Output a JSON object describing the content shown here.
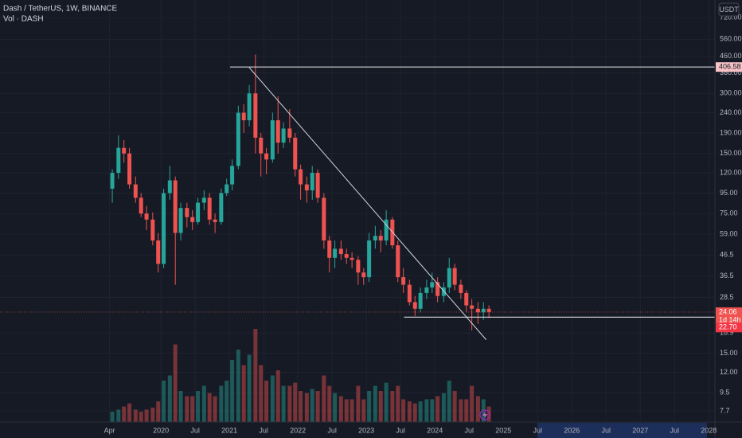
{
  "chart_data": {
    "type": "candlestick",
    "title": "Dash / TetherUS, 1W, BINANCE",
    "subtitle": "Vol · DASH",
    "currency": "USDT",
    "log_scale": true,
    "grid": true,
    "up_color": "#26a69a",
    "down_color": "#ef5350",
    "xlim": [
      2017.65,
      2028.09
    ],
    "xticks": [
      {
        "value": 2019.25,
        "label": "Apr"
      },
      2020,
      {
        "value": 2020.5,
        "label": "Jul"
      },
      2021,
      {
        "value": 2021.5,
        "label": "Jul"
      },
      2022,
      {
        "value": 2022.5,
        "label": "Jul"
      },
      2023,
      {
        "value": 2023.5,
        "label": "Jul"
      },
      2024,
      {
        "value": 2024.5,
        "label": "Jul"
      },
      2025,
      {
        "value": 2025.5,
        "label": "Jul"
      },
      2026,
      {
        "value": 2026.5,
        "label": "Jul"
      },
      2027,
      {
        "value": 2027.5,
        "label": "Jul"
      },
      2028
    ],
    "ylim": [
      6.77,
      881
    ],
    "yticks": [
      {
        "value": 720,
        "label": "720.00"
      },
      {
        "value": 560,
        "label": "560.00"
      },
      {
        "value": 460,
        "label": "460.00"
      },
      {
        "value": 380,
        "label": "380.00"
      },
      {
        "value": 300,
        "label": "300.00"
      },
      {
        "value": 240,
        "label": "240.00"
      },
      {
        "value": 190,
        "label": "190.00"
      },
      {
        "value": 150,
        "label": "150.00"
      },
      {
        "value": 120,
        "label": "120.00"
      },
      {
        "value": 95,
        "label": "95.00"
      },
      {
        "value": 75,
        "label": "75.00"
      },
      {
        "value": 59,
        "label": "59.00"
      },
      46.5,
      36.5,
      28.5,
      18.9,
      {
        "value": 15,
        "label": "15.00"
      },
      {
        "value": 12,
        "label": "12.00"
      },
      9.5,
      7.7
    ],
    "vlim": [
      0,
      100
    ],
    "x": [
      2019.29,
      2019.38,
      2019.46,
      2019.54,
      2019.63,
      2019.71,
      2019.79,
      2019.88,
      2019.96,
      2020.04,
      2020.13,
      2020.21,
      2020.29,
      2020.38,
      2020.46,
      2020.54,
      2020.63,
      2020.71,
      2020.79,
      2020.88,
      2020.96,
      2021.04,
      2021.13,
      2021.21,
      2021.29,
      2021.38,
      2021.46,
      2021.54,
      2021.63,
      2021.71,
      2021.79,
      2021.88,
      2021.96,
      2022.04,
      2022.13,
      2022.21,
      2022.29,
      2022.38,
      2022.46,
      2022.54,
      2022.63,
      2022.71,
      2022.79,
      2022.88,
      2022.96,
      2023.04,
      2023.13,
      2023.21,
      2023.29,
      2023.38,
      2023.46,
      2023.54,
      2023.63,
      2023.71,
      2023.79,
      2023.88,
      2023.96,
      2024.04,
      2024.13,
      2024.21,
      2024.29,
      2024.38,
      2024.46,
      2024.54,
      2024.63,
      2024.71,
      2024.79
    ],
    "open": [
      100,
      120,
      160,
      150,
      105,
      90,
      75,
      70,
      55,
      42,
      95,
      110,
      60,
      80,
      72,
      68,
      85,
      90,
      70,
      68,
      95,
      105,
      130,
      240,
      220,
      300,
      180,
      150,
      140,
      220,
      170,
      200,
      180,
      125,
      105,
      98,
      120,
      90,
      55,
      45,
      50,
      47,
      45,
      44,
      38,
      36,
      55,
      58,
      55,
      70,
      52,
      36,
      33,
      27,
      25,
      30,
      32,
      34,
      29,
      32,
      40,
      33,
      30,
      26,
      25,
      24,
      25
    ],
    "high": [
      125,
      185,
      175,
      160,
      115,
      95,
      82,
      76,
      60,
      100,
      130,
      115,
      85,
      85,
      78,
      90,
      98,
      95,
      75,
      100,
      112,
      140,
      260,
      265,
      330,
      470,
      190,
      160,
      240,
      290,
      215,
      250,
      190,
      132,
      115,
      130,
      125,
      95,
      58,
      55,
      55,
      50,
      48,
      46,
      40,
      60,
      65,
      62,
      78,
      72,
      55,
      40,
      35,
      29,
      32,
      35,
      38,
      36,
      34,
      45,
      42,
      35,
      31,
      28,
      27,
      27,
      26
    ],
    "low": [
      85,
      112,
      135,
      100,
      85,
      72,
      62,
      52,
      38,
      40,
      88,
      33,
      55,
      64,
      62,
      66,
      78,
      66,
      60,
      66,
      92,
      98,
      125,
      190,
      205,
      150,
      115,
      118,
      135,
      150,
      160,
      170,
      115,
      88,
      85,
      88,
      85,
      50,
      38,
      40,
      44,
      42,
      40,
      33,
      33,
      34,
      50,
      48,
      52,
      50,
      34,
      30,
      26,
      23,
      24,
      28,
      30,
      27,
      27,
      30,
      31,
      28,
      24,
      19.5,
      21,
      22,
      22.5
    ],
    "close": [
      120,
      160,
      150,
      105,
      90,
      75,
      70,
      55,
      42,
      95,
      110,
      60,
      80,
      72,
      68,
      85,
      90,
      70,
      68,
      95,
      105,
      130,
      240,
      220,
      300,
      180,
      150,
      140,
      220,
      170,
      200,
      180,
      125,
      105,
      98,
      120,
      90,
      55,
      45,
      50,
      47,
      45,
      44,
      38,
      36,
      55,
      58,
      55,
      70,
      52,
      36,
      33,
      27,
      25,
      30,
      32,
      34,
      29,
      32,
      40,
      33,
      30,
      26,
      25,
      24,
      25,
      24.06
    ],
    "volume": [
      10,
      12,
      15,
      18,
      12,
      10,
      12,
      14,
      20,
      40,
      45,
      75,
      30,
      25,
      25,
      30,
      35,
      28,
      25,
      35,
      40,
      60,
      70,
      55,
      65,
      90,
      55,
      40,
      45,
      50,
      35,
      35,
      38,
      30,
      28,
      32,
      30,
      45,
      35,
      28,
      25,
      22,
      22,
      35,
      22,
      30,
      35,
      30,
      38,
      30,
      35,
      22,
      20,
      18,
      20,
      22,
      22,
      25,
      28,
      40,
      30,
      22,
      22,
      35,
      25,
      22,
      15
    ],
    "levels": [
      {
        "value": 406.58,
        "x_start": 2021.01,
        "color": "#f7c1c6"
      },
      {
        "value": 22.7,
        "label": "22.70",
        "x_start": 2023.55,
        "color": "#f23645"
      }
    ],
    "trend_line": {
      "x": [
        2021.29,
        2024.75
      ],
      "y": [
        404,
        17.5
      ]
    },
    "last_price": 24.06,
    "countdown": "1d 14h"
  }
}
